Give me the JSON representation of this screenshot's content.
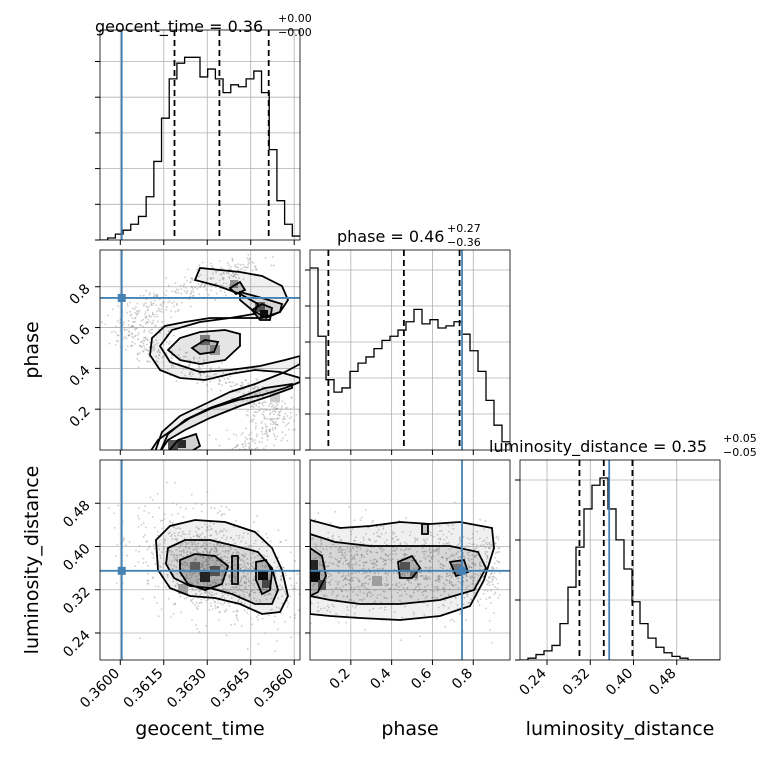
{
  "chart_data": {
    "type": "corner",
    "parameters": [
      "geocent_time",
      "phase",
      "luminosity_distance"
    ],
    "titles": [
      {
        "param": "geocent_time",
        "prefix": "geocent_time = ",
        "median": "0.36",
        "plus": "+0.00",
        "minus": "−0.00"
      },
      {
        "param": "phase",
        "prefix": "phase = ",
        "median": "0.46",
        "plus": "+0.27",
        "minus": "−0.36"
      },
      {
        "param": "luminosity_distance",
        "prefix": "luminosity_distance = ",
        "median": "0.35",
        "plus": "+0.05",
        "minus": "−0.05"
      }
    ],
    "axes": {
      "geocent_time": {
        "label": "geocent_time",
        "range": [
          0.3593,
          0.3662
        ],
        "ticks": [
          0.36,
          0.3615,
          0.363,
          0.3645,
          0.366
        ],
        "tick_labels": [
          "0.3600",
          "0.3615",
          "0.3630",
          "0.3645",
          "0.3660"
        ]
      },
      "phase": {
        "label": "phase",
        "range": [
          0.0,
          0.98
        ],
        "ticks": [
          0.2,
          0.4,
          0.6,
          0.8
        ],
        "tick_labels": [
          "0.2",
          "0.4",
          "0.6",
          "0.8"
        ]
      },
      "luminosity_distance": {
        "label": "luminosity_distance",
        "range": [
          0.19,
          0.56
        ],
        "ticks": [
          0.24,
          0.32,
          0.4,
          0.48
        ],
        "tick_labels": [
          "0.24",
          "0.32",
          "0.40",
          "0.48"
        ]
      }
    },
    "truths": {
      "geocent_time": 0.36005,
      "phase": 0.745,
      "luminosity_distance": 0.355
    },
    "quantiles": {
      "geocent_time": [
        0.36187,
        0.36342,
        0.36512
      ],
      "phase": [
        0.09,
        0.46,
        0.733
      ],
      "luminosity_distance": [
        0.3,
        0.345,
        0.398
      ]
    },
    "histograms": {
      "geocent_time": {
        "bin_edges_range": [
          0.3593,
          0.3662
        ],
        "counts": [
          0,
          0.01,
          0.03,
          0.05,
          0.08,
          0.12,
          0.22,
          0.4,
          0.62,
          0.82,
          0.9,
          0.93,
          0.93,
          0.83,
          0.87,
          0.82,
          0.75,
          0.79,
          0.78,
          0.82,
          0.86,
          0.75,
          0.46,
          0.2,
          0.08,
          0.02
        ]
      },
      "phase": {
        "bin_edges_range": [
          0.0,
          0.98
        ],
        "counts": [
          0.88,
          0.55,
          0.34,
          0.28,
          0.3,
          0.38,
          0.42,
          0.45,
          0.49,
          0.53,
          0.55,
          0.58,
          0.62,
          0.68,
          0.61,
          0.63,
          0.59,
          0.6,
          0.62,
          0.56,
          0.48,
          0.38,
          0.24,
          0.12,
          0.04
        ]
      },
      "luminosity_distance": {
        "bin_edges_range": [
          0.19,
          0.56
        ],
        "counts": [
          0.0,
          0.01,
          0.03,
          0.05,
          0.08,
          0.2,
          0.4,
          0.62,
          0.83,
          0.96,
          1.0,
          0.83,
          0.66,
          0.5,
          0.32,
          0.2,
          0.12,
          0.07,
          0.04,
          0.02,
          0.01,
          0.0,
          0.0,
          0.0,
          0.0
        ]
      }
    },
    "grid": true
  }
}
